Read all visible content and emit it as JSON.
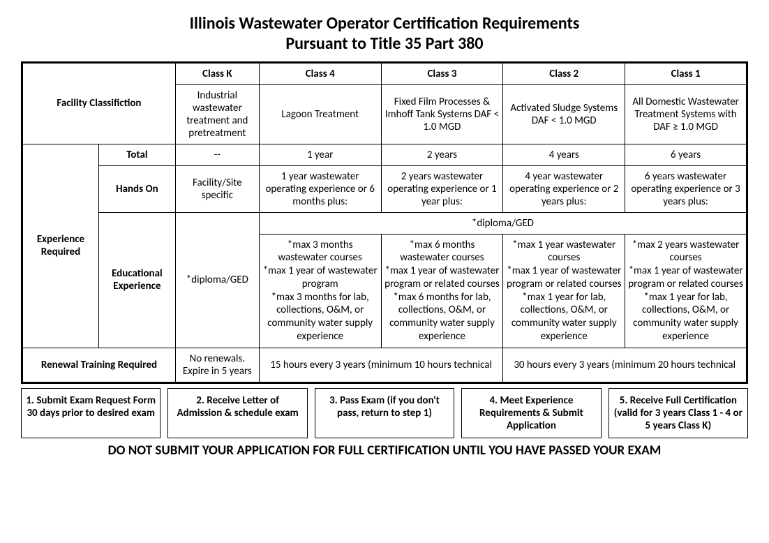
{
  "title_line1": "Illinois Wastewater Operator Certification Requirements",
  "title_line2": "Pursuant to Title 35 Part 380",
  "headers": {
    "class_k": "Class K",
    "class_4": "Class 4",
    "class_3": "Class 3",
    "class_2": "Class 2",
    "class_1": "Class 1"
  },
  "facility": {
    "label": "Facility Classifiction",
    "k": "Industrial wastewater treatment and pretreatment",
    "c4": "Lagoon Treatment",
    "c3": "Fixed Film Processes & Imhoff Tank Systems DAF < 1.0 MGD",
    "c2": "Activated Sludge Systems DAF < 1.0 MGD",
    "c1": "All Domestic Wastewater Treatment Systems with DAF ≥ 1.0 MGD"
  },
  "experience": {
    "label": "Experience Required",
    "total": {
      "label": "Total",
      "k": "--",
      "c4": "1 year",
      "c3": "2 years",
      "c2": "4 years",
      "c1": "6 years"
    },
    "handson": {
      "label": "Hands On",
      "k": "Facility/Site specific",
      "c4": "1 year wastewater operating experience or 6 months plus:",
      "c3": "2 years wastewater operating experience or 1 year plus:",
      "c2": "4 year wastewater operating experience or 2 years plus:",
      "c1": "6 years wastewater operating experience  or 3 years plus:"
    },
    "edu": {
      "label": "Educational Experience",
      "k": "*diploma/GED",
      "diploma_shared": "*diploma/GED",
      "c4": "*max 3 months wastewater courses\n*max 1 year of wastewater program\n*max 3 months for lab, collections, O&M, or community water supply experience",
      "c3": "*max 6 months wastewater courses\n*max 1 year of wastewater program or related courses\n*max 6 months for lab, collections, O&M, or community water supply experience",
      "c2": "*max 1 year wastewater courses\n*max 1 year of wastewater program or related courses\n*max 1 year for lab, collections, O&M, or community water supply experience",
      "c1": "*max 2 years wastewater courses\n*max 1 year of wastewater program or related courses\n*max 1 year for lab, collections, O&M, or community water supply experience"
    }
  },
  "renewal": {
    "label": "Renewal Training Required",
    "k": "No renewals. Expire in 5 years",
    "g43": "15 hours every 3 years (minimum 10 hours technical",
    "g21": "30 hours every 3 years (minimum 20 hours technical"
  },
  "steps": {
    "s1": "1. Submit Exam Request Form 30 days prior to desired exam",
    "s2": "2. Receive Letter of Admission & schedule exam",
    "s3": "3. Pass Exam (if you don't pass, return to step 1)",
    "s4": "4. Meet Experience Requirements & Submit Application",
    "s5": "5. Receive Full Certification (valid for 3 years Class 1 - 4 or 5 years Class K)"
  },
  "warning": "DO NOT SUBMIT YOUR APPLICATION FOR FULL CERTIFICATION UNTIL YOU HAVE PASSED YOUR EXAM"
}
